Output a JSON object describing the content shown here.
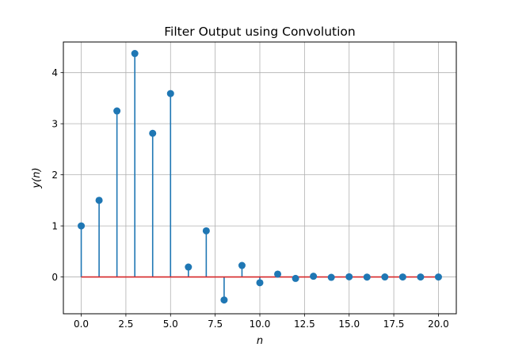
{
  "chart_data": {
    "type": "stem",
    "title": "Filter Output using Convolution",
    "xlabel": "n",
    "ylabel": "y(n)",
    "x": [
      0,
      1,
      2,
      3,
      4,
      5,
      6,
      7,
      8,
      9,
      10,
      11,
      12,
      13,
      14,
      15,
      16,
      17,
      18,
      19,
      20
    ],
    "values": [
      1.0,
      1.5,
      3.25,
      4.375,
      2.8125,
      3.59,
      0.195,
      0.903,
      -0.45,
      0.226,
      -0.113,
      0.056,
      -0.028,
      0.014,
      -0.007,
      0.0035,
      -0.0018,
      0.0009,
      -0.0004,
      0.0002,
      -0.0001
    ],
    "xlim": [
      -1.0,
      21.0
    ],
    "ylim": [
      -0.72,
      4.6
    ],
    "xticks": [
      0.0,
      2.5,
      5.0,
      7.5,
      10.0,
      12.5,
      15.0,
      17.5,
      20.0
    ],
    "xtick_labels": [
      "0.0",
      "2.5",
      "5.0",
      "7.5",
      "10.0",
      "12.5",
      "15.0",
      "17.5",
      "20.0"
    ],
    "yticks": [
      0,
      1,
      2,
      3,
      4
    ],
    "ytick_labels": [
      "0",
      "1",
      "2",
      "3",
      "4"
    ],
    "grid": true,
    "colors": {
      "stem": "#1f77b4",
      "marker": "#1f77b4",
      "baseline": "#d62728",
      "grid": "#b0b0b0"
    }
  }
}
